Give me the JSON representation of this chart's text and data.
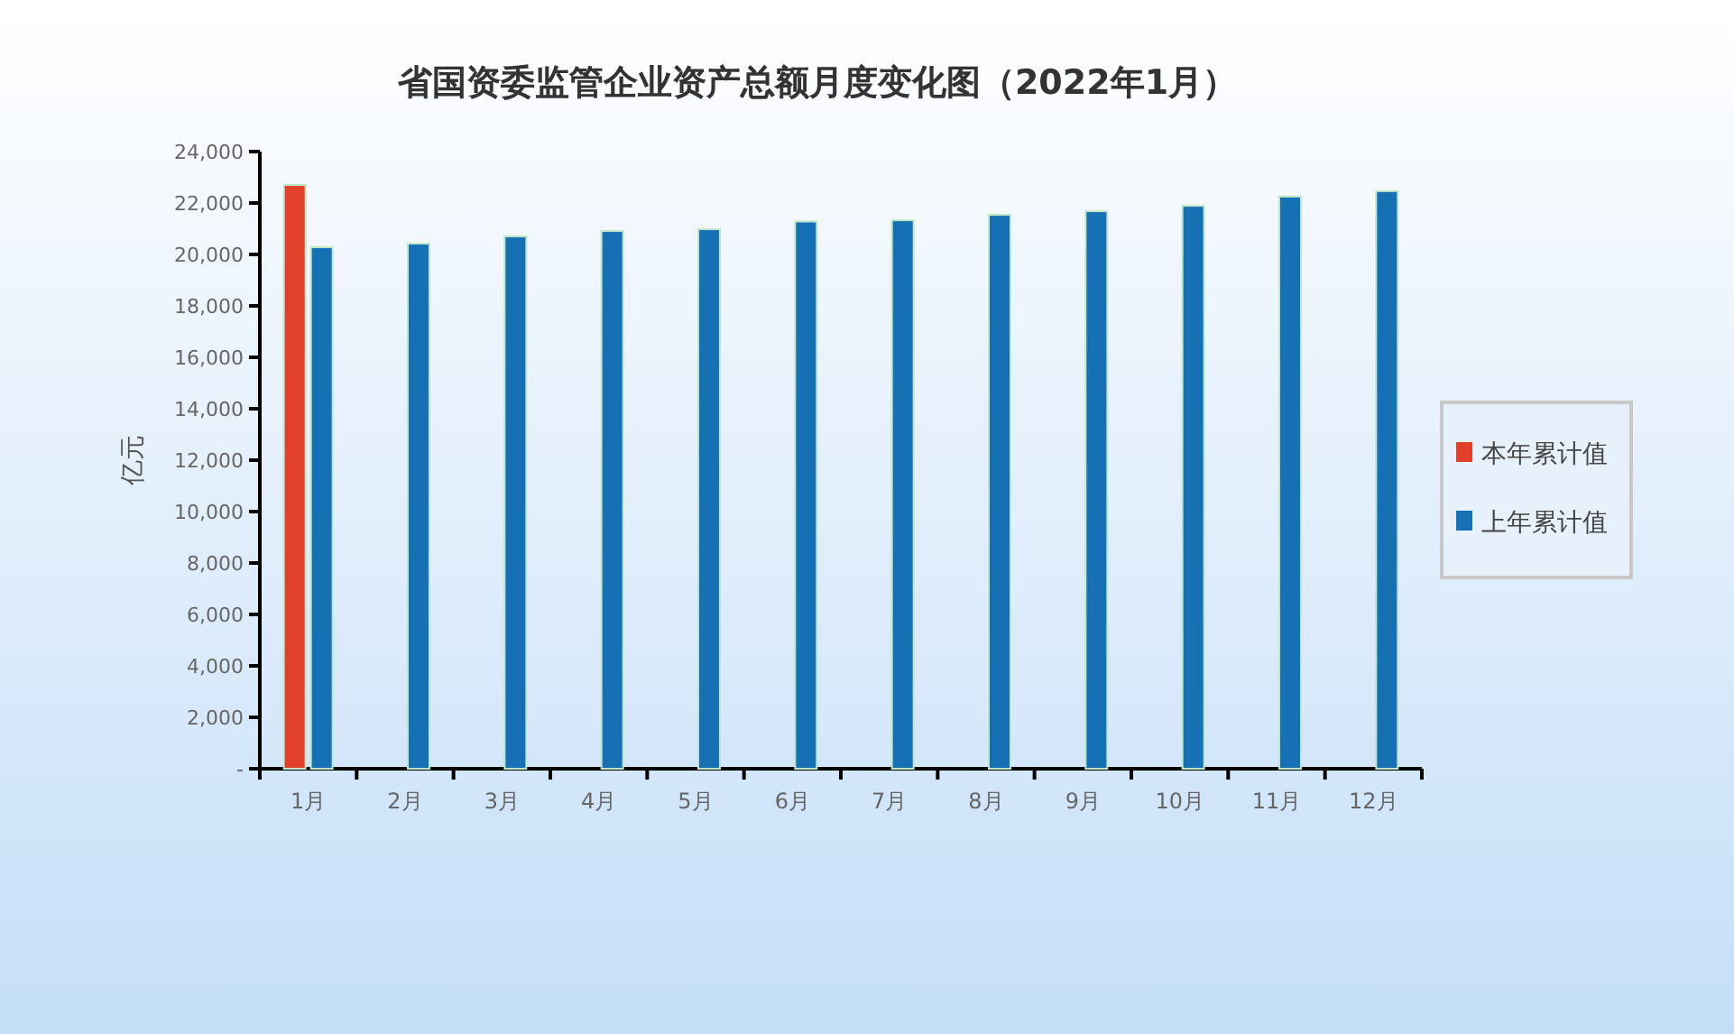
{
  "chart_data": {
    "type": "bar",
    "title": "省国资委监管企业资产总额月度变化图（2022年1月）",
    "ylabel": "亿元",
    "categories": [
      "1月",
      "2月",
      "3月",
      "4月",
      "5月",
      "6月",
      "7月",
      "8月",
      "9月",
      "10月",
      "11月",
      "12月"
    ],
    "series": [
      {
        "name": "本年累计值",
        "color": "#e2402a",
        "values": [
          22700,
          null,
          null,
          null,
          null,
          null,
          null,
          null,
          null,
          null,
          null,
          null
        ]
      },
      {
        "name": "上年累计值",
        "color": "#1671b4",
        "values": [
          20280,
          20420,
          20700,
          20910,
          20980,
          21280,
          21330,
          21540,
          21680,
          21890,
          22250,
          22460
        ]
      }
    ],
    "ylim": [
      0,
      24000
    ],
    "yticks": [
      {
        "value": 0,
        "label": "-"
      },
      {
        "value": 2000,
        "label": "2,000"
      },
      {
        "value": 4000,
        "label": "4,000"
      },
      {
        "value": 6000,
        "label": "6,000"
      },
      {
        "value": 8000,
        "label": "8,000"
      },
      {
        "value": 10000,
        "label": "10,000"
      },
      {
        "value": 12000,
        "label": "12,000"
      },
      {
        "value": 14000,
        "label": "14,000"
      },
      {
        "value": 16000,
        "label": "16,000"
      },
      {
        "value": 18000,
        "label": "18,000"
      },
      {
        "value": 20000,
        "label": "20,000"
      },
      {
        "value": 22000,
        "label": "22,000"
      },
      {
        "value": 24000,
        "label": "24,000"
      }
    ],
    "legend": "right"
  }
}
